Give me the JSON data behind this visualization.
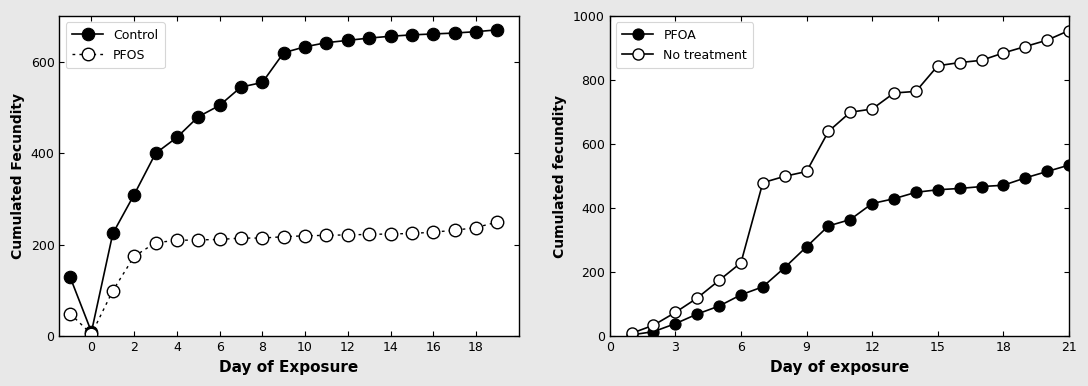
{
  "left": {
    "xlabel": "Day of Exposure",
    "ylabel": "Cumulated Fecundity",
    "xlim": [
      -1.5,
      20
    ],
    "ylim": [
      0,
      700
    ],
    "yticks": [
      0,
      200,
      400,
      600
    ],
    "xticks": [
      0,
      2,
      4,
      6,
      8,
      10,
      12,
      14,
      16,
      18
    ],
    "control_x": [
      -1,
      0,
      1,
      2,
      3,
      4,
      5,
      6,
      7,
      8,
      9,
      10,
      11,
      12,
      13,
      14,
      15,
      16,
      17,
      18,
      19
    ],
    "control_y": [
      130,
      10,
      225,
      310,
      400,
      435,
      480,
      505,
      545,
      555,
      620,
      633,
      642,
      647,
      652,
      656,
      659,
      661,
      663,
      666,
      670
    ],
    "pfos_x": [
      -1,
      0,
      1,
      2,
      3,
      4,
      5,
      6,
      7,
      8,
      9,
      10,
      11,
      12,
      13,
      14,
      15,
      16,
      17,
      18,
      19
    ],
    "pfos_y": [
      50,
      5,
      100,
      175,
      205,
      210,
      211,
      212,
      215,
      215,
      218,
      220,
      221,
      222,
      223,
      224,
      225,
      228,
      232,
      238,
      250
    ],
    "legend_labels": [
      "Control",
      "PFOS"
    ],
    "control_linestyle": "solid",
    "pfos_linestyle": "dotted"
  },
  "right": {
    "xlabel": "Day of exposure",
    "ylabel": "Cumulated fecundity",
    "xlim": [
      0,
      21
    ],
    "ylim": [
      0,
      1000
    ],
    "yticks": [
      0,
      200,
      400,
      600,
      800,
      1000
    ],
    "xticks": [
      0,
      3,
      6,
      9,
      12,
      15,
      18,
      21
    ],
    "pfoa_x": [
      1,
      2,
      3,
      4,
      5,
      6,
      7,
      8,
      9,
      10,
      11,
      12,
      13,
      14,
      15,
      16,
      17,
      18,
      19,
      20,
      21
    ],
    "pfoa_y": [
      5,
      15,
      40,
      70,
      95,
      130,
      155,
      215,
      280,
      345,
      365,
      415,
      430,
      450,
      458,
      462,
      468,
      472,
      495,
      515,
      535
    ],
    "notreat_x": [
      1,
      2,
      3,
      4,
      5,
      6,
      7,
      8,
      9,
      10,
      11,
      12,
      13,
      14,
      15,
      16,
      17,
      18,
      19,
      20,
      21
    ],
    "notreat_y": [
      10,
      35,
      75,
      120,
      175,
      230,
      480,
      500,
      515,
      640,
      700,
      710,
      760,
      765,
      845,
      855,
      862,
      885,
      905,
      925,
      955
    ],
    "legend_labels": [
      "PFOA",
      "No treatment"
    ]
  },
  "bg_color": "#e8e8e8",
  "plot_bg": "#ffffff"
}
